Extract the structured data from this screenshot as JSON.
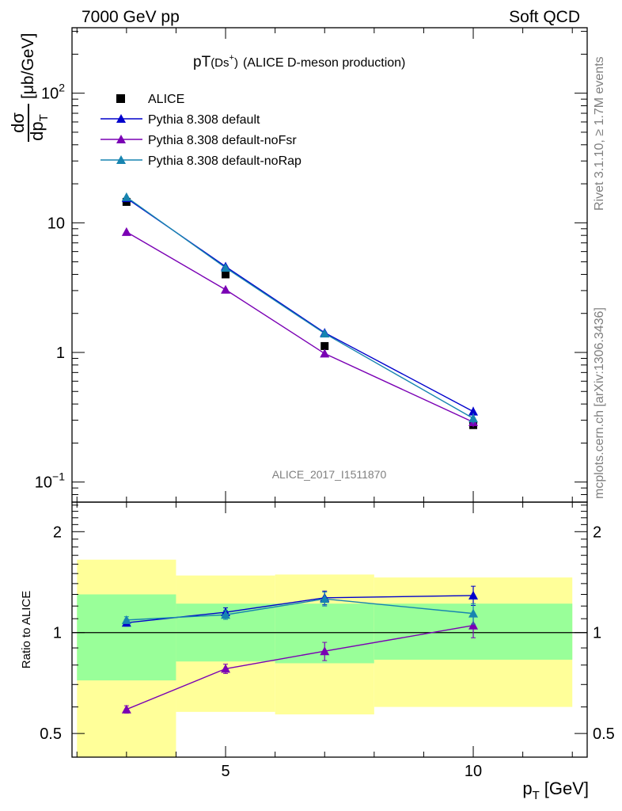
{
  "header": {
    "left": "7000 GeV pp",
    "right": "Soft QCD"
  },
  "side_labels": {
    "rivet": "Rivet 3.1.10, ≥ 1.7M events",
    "mcplots": "mcplots.cern.ch [arXiv:1306.3436]"
  },
  "chart_data": [
    {
      "type": "line",
      "title_main": "pT",
      "title_particle": "(Ds",
      "title_sup": "+",
      "title_close": ")",
      "title_rest": "(ALICE D-meson production)",
      "ylabel": "dσ/dp_T [μb/GeV]",
      "ylabel_unit": "[μb/GeV]",
      "ylabel_num": "dσ",
      "ylabel_den": "dp",
      "ylabel_sub": "T",
      "yscale": "log",
      "xlim": [
        1.9,
        12.3
      ],
      "ylim": [
        0.07,
        320
      ],
      "yticks": [
        {
          "base": "10",
          "exp": "−1",
          "value": 0.1
        },
        {
          "base": "1",
          "exp": "",
          "value": 1
        },
        {
          "base": "10",
          "exp": "",
          "value": 10
        },
        {
          "base": "10",
          "exp": "2",
          "value": 100
        }
      ],
      "watermark": "ALICE_2017_I1511870",
      "legend_position": "top-left",
      "series": [
        {
          "name": "ALICE",
          "color": "#000000",
          "marker": "square",
          "x": [
            3,
            5,
            7,
            10
          ],
          "y": [
            14.5,
            4.0,
            1.12,
            0.275
          ],
          "xerr": [
            [
              2,
              4
            ],
            [
              4,
              6
            ],
            [
              6,
              8
            ],
            [
              8,
              12
            ]
          ]
        },
        {
          "name": "Pythia 8.308 default",
          "color": "#0000cc",
          "marker": "triangle",
          "x": [
            3,
            5,
            7,
            10
          ],
          "y": [
            15.5,
            4.6,
            1.42,
            0.35
          ],
          "yerr": [
            0.3,
            0.12,
            0.08,
            0.03
          ]
        },
        {
          "name": "Pythia 8.308 default-noFsr",
          "color": "#7a00b4",
          "marker": "triangle",
          "x": [
            3,
            5,
            7,
            10
          ],
          "y": [
            8.5,
            3.05,
            0.98,
            0.29
          ],
          "yerr": [
            0.2,
            0.08,
            0.06,
            0.025
          ]
        },
        {
          "name": "Pythia 8.308 default-noRap",
          "color": "#1784b0",
          "marker": "triangle",
          "x": [
            3,
            5,
            7,
            10
          ],
          "y": [
            15.8,
            4.5,
            1.4,
            0.31
          ],
          "yerr": [
            0.3,
            0.12,
            0.08,
            0.03
          ]
        }
      ]
    },
    {
      "type": "line",
      "ylabel": "Ratio to ALICE",
      "xlabel": "p_T [GeV]",
      "xlabel_main": "p",
      "xlabel_sub": "T",
      "xlabel_unit": "[GeV]",
      "yscale": "log",
      "xlim": [
        1.9,
        12.3
      ],
      "ylim": [
        0.425,
        2.45
      ],
      "xticks": [
        {
          "label": "5",
          "value": 5
        },
        {
          "label": "10",
          "value": 10
        }
      ],
      "yticks": [
        {
          "label": "0.5",
          "value": 0.5
        },
        {
          "label": "1",
          "value": 1
        },
        {
          "label": "2",
          "value": 2
        }
      ],
      "reference": 1,
      "bands": [
        {
          "x": [
            2,
            4
          ],
          "yellow": [
            0.42,
            1.65
          ],
          "green": [
            0.72,
            1.3
          ]
        },
        {
          "x": [
            4,
            6
          ],
          "yellow": [
            0.58,
            1.48
          ],
          "green": [
            0.82,
            1.22
          ]
        },
        {
          "x": [
            6,
            8
          ],
          "yellow": [
            0.57,
            1.49
          ],
          "green": [
            0.81,
            1.22
          ]
        },
        {
          "x": [
            8,
            12
          ],
          "yellow": [
            0.6,
            1.46
          ],
          "green": [
            0.83,
            1.22
          ]
        }
      ],
      "series": [
        {
          "name": "Pythia 8.308 default",
          "color": "#0000cc",
          "x": [
            3,
            5,
            7,
            10
          ],
          "y": [
            1.07,
            1.15,
            1.27,
            1.29
          ],
          "yerr": [
            0.025,
            0.035,
            0.06,
            0.085
          ]
        },
        {
          "name": "Pythia 8.308 default-noFsr",
          "color": "#7a00b4",
          "x": [
            3,
            5,
            7,
            10
          ],
          "y": [
            0.59,
            0.78,
            0.88,
            1.05
          ],
          "yerr": [
            0.015,
            0.025,
            0.055,
            0.085
          ]
        },
        {
          "name": "Pythia 8.308 default-noRap",
          "color": "#1784b0",
          "x": [
            3,
            5,
            7,
            10
          ],
          "y": [
            1.09,
            1.13,
            1.26,
            1.14
          ],
          "yerr": [
            0.025,
            0.035,
            0.06,
            0.08
          ]
        }
      ]
    }
  ]
}
